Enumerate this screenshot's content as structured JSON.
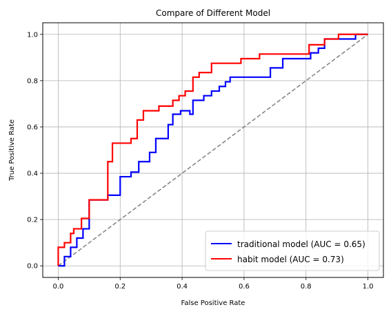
{
  "chart_data": {
    "type": "line",
    "title": "Compare of Different Model",
    "xlabel": "False Positive Rate",
    "ylabel": "True Positive Rate",
    "xlim": [
      -0.05,
      1.05
    ],
    "ylim": [
      -0.05,
      1.05
    ],
    "xticks": [
      "0.0",
      "0.2",
      "0.4",
      "0.6",
      "0.8",
      "1.0"
    ],
    "yticks": [
      "0.0",
      "0.2",
      "0.4",
      "0.6",
      "0.8",
      "1.0"
    ],
    "grid": true,
    "legend_location": "lower right",
    "series": [
      {
        "name": "traditional model (AUC = 0.65)",
        "color": "#0000ff",
        "x": [
          0.0,
          0.02,
          0.02,
          0.04,
          0.04,
          0.06,
          0.06,
          0.08,
          0.08,
          0.1,
          0.1,
          0.16,
          0.16,
          0.2,
          0.2,
          0.235,
          0.235,
          0.26,
          0.26,
          0.295,
          0.295,
          0.315,
          0.315,
          0.355,
          0.355,
          0.37,
          0.37,
          0.395,
          0.395,
          0.425,
          0.425,
          0.435,
          0.435,
          0.47,
          0.47,
          0.495,
          0.495,
          0.52,
          0.52,
          0.54,
          0.54,
          0.555,
          0.555,
          0.59,
          0.59,
          0.685,
          0.685,
          0.725,
          0.725,
          0.815,
          0.815,
          0.84,
          0.84,
          0.86,
          0.86,
          0.96,
          0.96,
          1.0
        ],
        "y": [
          0.0,
          0.0,
          0.04,
          0.04,
          0.08,
          0.08,
          0.12,
          0.12,
          0.16,
          0.16,
          0.285,
          0.285,
          0.305,
          0.305,
          0.385,
          0.385,
          0.405,
          0.405,
          0.45,
          0.45,
          0.49,
          0.49,
          0.55,
          0.55,
          0.61,
          0.61,
          0.655,
          0.655,
          0.67,
          0.67,
          0.655,
          0.655,
          0.715,
          0.715,
          0.735,
          0.735,
          0.755,
          0.755,
          0.775,
          0.775,
          0.795,
          0.795,
          0.815,
          0.815,
          0.815,
          0.815,
          0.855,
          0.855,
          0.895,
          0.895,
          0.92,
          0.92,
          0.94,
          0.94,
          0.98,
          0.98,
          1.0,
          1.0
        ]
      },
      {
        "name": "habit model (AUC = 0.73)",
        "color": "#ff0000",
        "x": [
          0.0,
          0.0,
          0.02,
          0.02,
          0.04,
          0.04,
          0.05,
          0.05,
          0.075,
          0.075,
          0.1,
          0.1,
          0.16,
          0.16,
          0.175,
          0.175,
          0.235,
          0.235,
          0.255,
          0.255,
          0.275,
          0.275,
          0.325,
          0.325,
          0.37,
          0.37,
          0.39,
          0.39,
          0.41,
          0.41,
          0.435,
          0.435,
          0.455,
          0.455,
          0.495,
          0.495,
          0.59,
          0.59,
          0.65,
          0.65,
          0.81,
          0.81,
          0.86,
          0.86,
          0.905,
          0.905,
          1.0
        ],
        "y": [
          0.0,
          0.08,
          0.08,
          0.1,
          0.1,
          0.14,
          0.14,
          0.16,
          0.16,
          0.205,
          0.205,
          0.285,
          0.285,
          0.45,
          0.45,
          0.53,
          0.53,
          0.55,
          0.55,
          0.63,
          0.63,
          0.67,
          0.67,
          0.69,
          0.69,
          0.715,
          0.715,
          0.735,
          0.735,
          0.755,
          0.755,
          0.815,
          0.815,
          0.835,
          0.835,
          0.875,
          0.875,
          0.895,
          0.895,
          0.915,
          0.915,
          0.955,
          0.955,
          0.98,
          0.98,
          1.0,
          1.0
        ]
      },
      {
        "name": "",
        "color": "#808080",
        "style": "dashed",
        "x": [
          0.0,
          1.0
        ],
        "y": [
          0.0,
          1.0
        ]
      }
    ]
  }
}
